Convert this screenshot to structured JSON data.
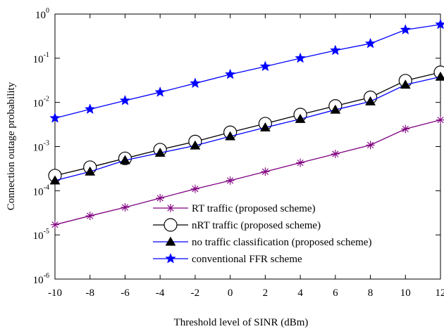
{
  "chart_data": {
    "type": "line",
    "title": "",
    "xlabel": "Threshold level of SINR (dBm)",
    "ylabel": "Connection outage probability",
    "x": [
      -10,
      -8,
      -6,
      -4,
      -2,
      0,
      2,
      4,
      6,
      8,
      10,
      12
    ],
    "xlim": [
      -10,
      12
    ],
    "ylim": [
      1e-06,
      1
    ],
    "yscale": "log",
    "x_tick_labels": [
      "-10",
      "-8",
      "-6",
      "-4",
      "-2",
      "0",
      "2",
      "4",
      "6",
      "8",
      "10",
      "12"
    ],
    "y_ticks": [
      {
        "value": 1,
        "base": "10",
        "exp": "0"
      },
      {
        "value": 0.1,
        "base": "10",
        "exp": "-1"
      },
      {
        "value": 0.01,
        "base": "10",
        "exp": "-2"
      },
      {
        "value": 0.001,
        "base": "10",
        "exp": "-3"
      },
      {
        "value": 0.0001,
        "base": "10",
        "exp": "-4"
      },
      {
        "value": 1e-05,
        "base": "10",
        "exp": "-5"
      },
      {
        "value": 1e-06,
        "base": "10",
        "exp": "-6"
      }
    ],
    "grid": false,
    "legend_position": "bottom-right",
    "series": [
      {
        "name": "RT traffic (proposed scheme)",
        "color": "#800080",
        "marker": "asterisk",
        "values": [
          1.7e-05,
          2.7e-05,
          4.2e-05,
          6.8e-05,
          0.00011,
          0.00017,
          0.00027,
          0.00043,
          0.00068,
          0.00108,
          0.0025,
          0.004
        ]
      },
      {
        "name": "nRT traffic (proposed scheme)",
        "color": "#000000",
        "marker": "open-circle",
        "values": [
          0.00022,
          0.00034,
          0.00054,
          0.00085,
          0.0013,
          0.0021,
          0.0033,
          0.0053,
          0.0083,
          0.013,
          0.031,
          0.048
        ]
      },
      {
        "name": "no traffic classification (proposed scheme)",
        "color": "#0000ff",
        "marker": "filled-triangle",
        "values": [
          0.00017,
          0.00027,
          0.00049,
          0.00072,
          0.00105,
          0.0017,
          0.0027,
          0.0042,
          0.0068,
          0.0105,
          0.025,
          0.038
        ]
      },
      {
        "name": "conventional FFR scheme",
        "color": "#0000ff",
        "marker": "star",
        "values": [
          0.0044,
          0.007,
          0.011,
          0.017,
          0.027,
          0.043,
          0.065,
          0.1,
          0.15,
          0.215,
          0.44,
          0.58
        ]
      }
    ]
  }
}
